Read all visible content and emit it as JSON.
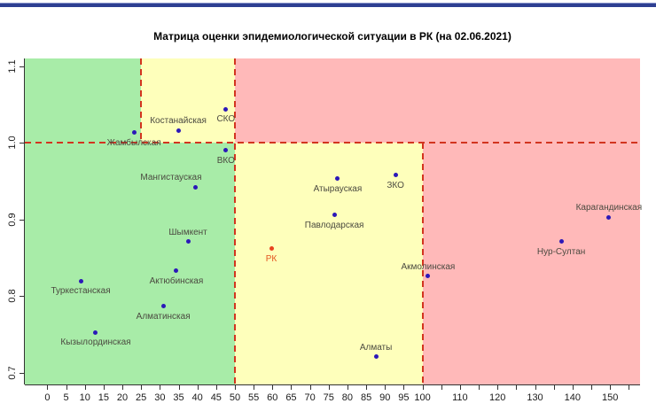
{
  "page": {
    "top_divider_color": "#2e3f92"
  },
  "chart_data": {
    "type": "scatter",
    "title": "Матрица оценки эпидемиологической ситуации в РК (на 02.06.2021)",
    "xlabel": "",
    "ylabel": "",
    "xlim": [
      -6,
      158
    ],
    "ylim": [
      0.685,
      1.11
    ],
    "grid": false,
    "legend_position": "none",
    "x_axis": {
      "tick_min": 0,
      "tick_max": 155,
      "tick_step": 5,
      "labels": [
        "0",
        "5",
        "10",
        "15",
        "20",
        "25",
        "30",
        "35",
        "40",
        "45",
        "50",
        "55",
        "60",
        "65",
        "70",
        "75",
        "80",
        "85",
        "90",
        "95",
        "100",
        "110",
        "120",
        "130",
        "140",
        "150"
      ]
    },
    "y_axis": {
      "labels": [
        "0.7",
        "0.8",
        "0.9",
        "1.0",
        "1.1"
      ]
    },
    "zone_colors": {
      "green": "#a8eca8",
      "yellow": "#feffbb",
      "pink": "#ffb9b9"
    },
    "zones": [
      {
        "label": "green-top-left",
        "x1": -6,
        "x2": 25,
        "y1": 1.0,
        "y2": 1.11,
        "color": "green"
      },
      {
        "label": "yellow-top",
        "x1": 25,
        "x2": 50,
        "y1": 1.0,
        "y2": 1.11,
        "color": "yellow"
      },
      {
        "label": "pink-top-right",
        "x1": 50,
        "x2": 158,
        "y1": 1.0,
        "y2": 1.11,
        "color": "pink"
      },
      {
        "label": "green-bottom-left",
        "x1": -6,
        "x2": 50,
        "y1": 0.685,
        "y2": 1.0,
        "color": "green"
      },
      {
        "label": "yellow-bottom-mid",
        "x1": 50,
        "x2": 100,
        "y1": 0.685,
        "y2": 1.0,
        "color": "yellow"
      },
      {
        "label": "pink-bottom-right",
        "x1": 100,
        "x2": 158,
        "y1": 0.685,
        "y2": 1.0,
        "color": "pink"
      }
    ],
    "threshold_lines": {
      "color": "#d2341f",
      "lines": [
        {
          "orient": "h",
          "at": 1.0,
          "from": -6,
          "to": 158
        },
        {
          "orient": "v",
          "at": 25,
          "from": 1.0,
          "to": 1.11
        },
        {
          "orient": "v",
          "at": 50,
          "from": 0.685,
          "to": 1.11
        },
        {
          "orient": "v",
          "at": 100,
          "from": 0.685,
          "to": 1.0
        }
      ]
    },
    "point_colors": {
      "region": "#2b18b8",
      "national": "#e8431f"
    },
    "label_color": "#4b4a40",
    "national_label_color": "#e2561f",
    "axis_color": "#333333",
    "points": [
      {
        "name": "Туркестанская",
        "x": 8.9,
        "y": 0.82,
        "series": "region",
        "label_pos": "below"
      },
      {
        "name": "Кызылординская",
        "x": 12.9,
        "y": 0.753,
        "series": "region",
        "label_pos": "below"
      },
      {
        "name": "Алматинская",
        "x": 30.9,
        "y": 0.787,
        "series": "region",
        "label_pos": "below"
      },
      {
        "name": "Актюбинская",
        "x": 34.4,
        "y": 0.833,
        "series": "region",
        "label_pos": "below"
      },
      {
        "name": "Шымкент",
        "x": 37.5,
        "y": 0.871,
        "series": "region",
        "label_pos": "above"
      },
      {
        "name": "Мангистауская",
        "x": 39.6,
        "y": 0.942,
        "series": "region",
        "label_pos": "above",
        "label_dx": -28
      },
      {
        "name": "Жамбылская",
        "x": 23.1,
        "y": 1.013,
        "series": "region",
        "label_pos": "below"
      },
      {
        "name": "Костанайская",
        "x": 34.9,
        "y": 1.016,
        "series": "region",
        "label_pos": "above"
      },
      {
        "name": "СКО",
        "x": 47.6,
        "y": 1.044,
        "series": "region",
        "label_pos": "below"
      },
      {
        "name": "ВКО",
        "x": 47.6,
        "y": 0.99,
        "series": "region",
        "label_pos": "below"
      },
      {
        "name": "РК",
        "x": 59.7,
        "y": 0.862,
        "series": "national",
        "label_pos": "below"
      },
      {
        "name": "Атырауская",
        "x": 77.4,
        "y": 0.953,
        "series": "region",
        "label_pos": "below"
      },
      {
        "name": "Павлодарская",
        "x": 76.5,
        "y": 0.906,
        "series": "region",
        "label_pos": "below"
      },
      {
        "name": "ЗКО",
        "x": 92.8,
        "y": 0.958,
        "series": "region",
        "label_pos": "below"
      },
      {
        "name": "Алматы",
        "x": 87.6,
        "y": 0.721,
        "series": "region",
        "label_pos": "above"
      },
      {
        "name": "Акмолинская",
        "x": 101.5,
        "y": 0.826,
        "series": "region",
        "label_pos": "above"
      },
      {
        "name": "Нур-Султан",
        "x": 137.0,
        "y": 0.871,
        "series": "region",
        "label_pos": "below"
      },
      {
        "name": "Карагандинская",
        "x": 149.7,
        "y": 0.903,
        "series": "region",
        "label_pos": "above"
      }
    ]
  }
}
